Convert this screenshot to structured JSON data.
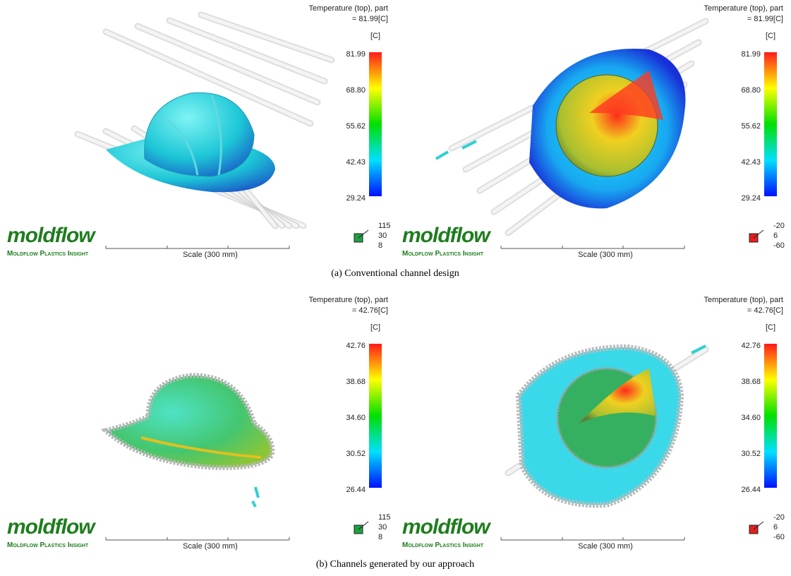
{
  "panels": [
    {
      "legend_title": "Temperature (top), part",
      "legend_value": "= 81.99[C]",
      "unit": "[C]",
      "scale_labels": [
        "81.99",
        "68.80",
        "55.62",
        "42.43",
        "29.24"
      ],
      "triad": [
        "115",
        "30",
        "8"
      ],
      "logo": "moldflow",
      "logo_sub": "Moldflow Plastics Insight",
      "scale_bar": "Scale (300 mm)"
    },
    {
      "legend_title": "Temperature (top), part",
      "legend_value": "= 81.99[C]",
      "unit": "[C]",
      "scale_labels": [
        "81.99",
        "68.80",
        "55.62",
        "42.43",
        "29.24"
      ],
      "triad": [
        "-20",
        "6",
        "-60"
      ],
      "logo": "moldflow",
      "logo_sub": "Moldflow Plastics Insight",
      "scale_bar": "Scale (300 mm)"
    },
    {
      "legend_title": "Temperature (top), part",
      "legend_value": "= 42.76[C]",
      "unit": "[C]",
      "scale_labels": [
        "42.76",
        "38.68",
        "34.60",
        "30.52",
        "26.44"
      ],
      "triad": [
        "115",
        "30",
        "8"
      ],
      "logo": "moldflow",
      "logo_sub": "Moldflow Plastics Insight",
      "scale_bar": "Scale (300 mm)"
    },
    {
      "legend_title": "Temperature (top), part",
      "legend_value": "= 42.76[C]",
      "unit": "[C]",
      "scale_labels": [
        "42.76",
        "38.68",
        "34.60",
        "30.52",
        "26.44"
      ],
      "triad": [
        "-20",
        "6",
        "-60"
      ],
      "logo": "moldflow",
      "logo_sub": "Moldflow Plastics Insight",
      "scale_bar": "Scale (300 mm)"
    }
  ],
  "captions": [
    "(a)  Conventional channel design",
    "(b)  Channels generated by our approach"
  ]
}
